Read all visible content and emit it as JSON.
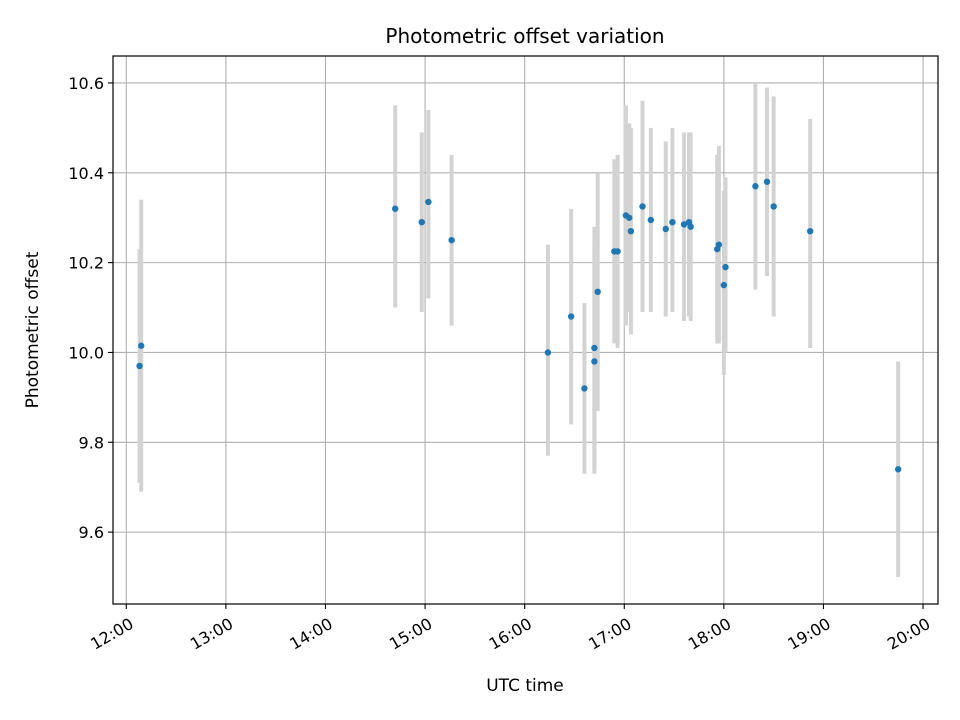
{
  "chart_data": {
    "type": "scatter",
    "title": "Photometric offset variation",
    "xlabel": "UTC time",
    "ylabel": "Photometric offset",
    "xlim": [
      "11:52",
      "20:09"
    ],
    "ylim": [
      9.44,
      10.66
    ],
    "x_ticks": [
      "12:00",
      "13:00",
      "14:00",
      "15:00",
      "16:00",
      "17:00",
      "18:00",
      "19:00",
      "20:00"
    ],
    "y_ticks": [
      9.6,
      9.8,
      10.0,
      10.2,
      10.4,
      10.6
    ],
    "grid": true,
    "colors": {
      "points": "#1f77b4",
      "errorbars": "#d3d3d3",
      "grid": "#b0b0b0"
    },
    "series": [
      {
        "points": [
          {
            "x": "12:08",
            "y": 9.97,
            "ylow": 9.71,
            "yhigh": 10.23
          },
          {
            "x": "12:09",
            "y": 10.015,
            "ylow": 9.69,
            "yhigh": 10.34
          },
          {
            "x": "14:42",
            "y": 10.32,
            "ylow": 10.1,
            "yhigh": 10.55
          },
          {
            "x": "14:58",
            "y": 10.29,
            "ylow": 10.09,
            "yhigh": 10.49
          },
          {
            "x": "15:02",
            "y": 10.335,
            "ylow": 10.12,
            "yhigh": 10.54
          },
          {
            "x": "15:16",
            "y": 10.25,
            "ylow": 10.06,
            "yhigh": 10.44
          },
          {
            "x": "16:14",
            "y": 10.0,
            "ylow": 9.77,
            "yhigh": 10.24
          },
          {
            "x": "16:28",
            "y": 10.08,
            "ylow": 9.84,
            "yhigh": 10.32
          },
          {
            "x": "16:36",
            "y": 9.92,
            "ylow": 9.73,
            "yhigh": 10.11
          },
          {
            "x": "16:42",
            "y": 9.98,
            "ylow": 9.73,
            "yhigh": 10.24
          },
          {
            "x": "16:42",
            "y": 10.01,
            "ylow": 9.74,
            "yhigh": 10.28
          },
          {
            "x": "16:44",
            "y": 10.135,
            "ylow": 9.87,
            "yhigh": 10.4
          },
          {
            "x": "16:54",
            "y": 10.225,
            "ylow": 10.02,
            "yhigh": 10.43
          },
          {
            "x": "16:56",
            "y": 10.225,
            "ylow": 10.01,
            "yhigh": 10.44
          },
          {
            "x": "17:01",
            "y": 10.305,
            "ylow": 10.06,
            "yhigh": 10.55
          },
          {
            "x": "17:03",
            "y": 10.3,
            "ylow": 10.09,
            "yhigh": 10.51
          },
          {
            "x": "17:04",
            "y": 10.27,
            "ylow": 10.04,
            "yhigh": 10.5
          },
          {
            "x": "17:11",
            "y": 10.325,
            "ylow": 10.09,
            "yhigh": 10.56
          },
          {
            "x": "17:16",
            "y": 10.295,
            "ylow": 10.09,
            "yhigh": 10.5
          },
          {
            "x": "17:25",
            "y": 10.275,
            "ylow": 10.08,
            "yhigh": 10.47
          },
          {
            "x": "17:29",
            "y": 10.29,
            "ylow": 10.09,
            "yhigh": 10.5
          },
          {
            "x": "17:36",
            "y": 10.285,
            "ylow": 10.07,
            "yhigh": 10.49
          },
          {
            "x": "17:39",
            "y": 10.29,
            "ylow": 10.08,
            "yhigh": 10.49
          },
          {
            "x": "17:40",
            "y": 10.28,
            "ylow": 10.07,
            "yhigh": 10.49
          },
          {
            "x": "17:56",
            "y": 10.23,
            "ylow": 10.02,
            "yhigh": 10.44
          },
          {
            "x": "17:57",
            "y": 10.24,
            "ylow": 10.02,
            "yhigh": 10.46
          },
          {
            "x": "18:00",
            "y": 10.15,
            "ylow": 9.95,
            "yhigh": 10.36
          },
          {
            "x": "18:01",
            "y": 10.19,
            "ylow": 10.0,
            "yhigh": 10.39
          },
          {
            "x": "18:19",
            "y": 10.37,
            "ylow": 10.14,
            "yhigh": 10.6
          },
          {
            "x": "18:26",
            "y": 10.38,
            "ylow": 10.17,
            "yhigh": 10.59
          },
          {
            "x": "18:30",
            "y": 10.325,
            "ylow": 10.08,
            "yhigh": 10.57
          },
          {
            "x": "18:52",
            "y": 10.27,
            "ylow": 10.01,
            "yhigh": 10.52
          },
          {
            "x": "19:45",
            "y": 9.74,
            "ylow": 9.5,
            "yhigh": 9.98
          }
        ]
      }
    ]
  }
}
